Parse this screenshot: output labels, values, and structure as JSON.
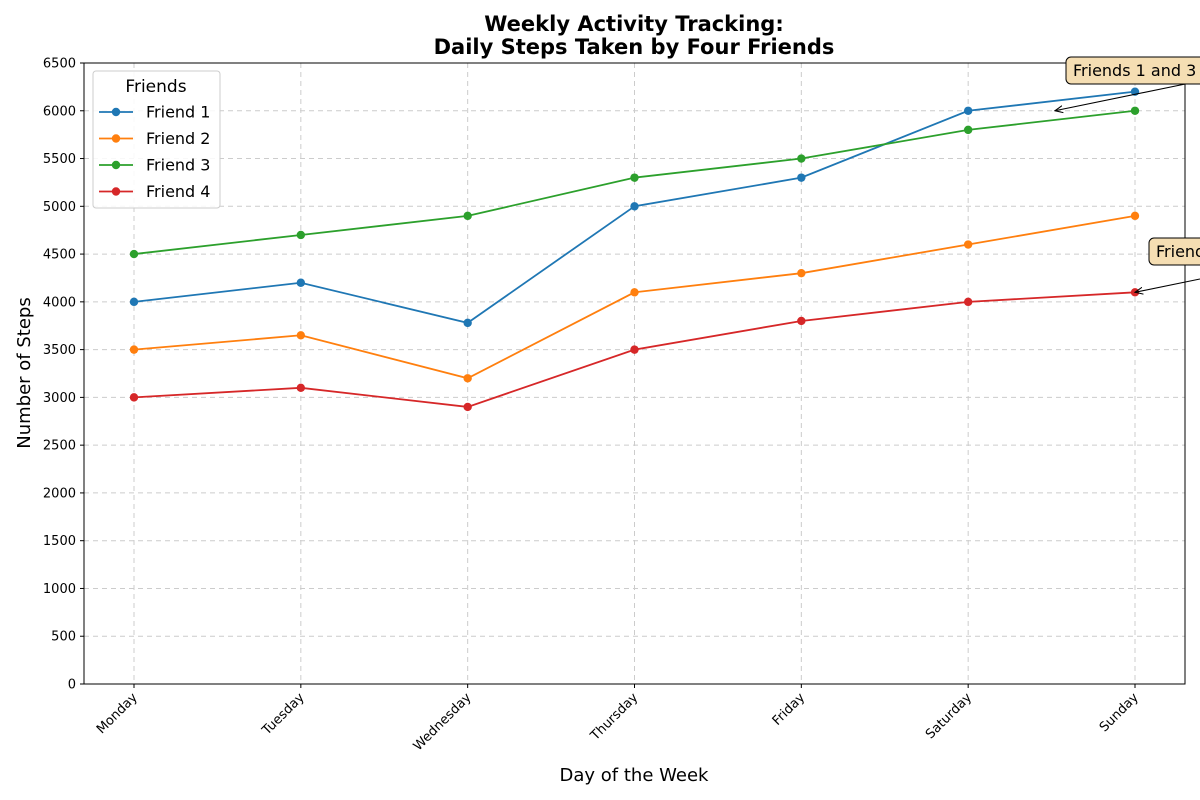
{
  "chart_data": {
    "type": "line",
    "title_line1": "Weekly Activity Tracking:",
    "title_line2": "Daily Steps Taken by Four Friends",
    "xlabel": "Day of the Week",
    "ylabel": "Number of Steps",
    "categories": [
      "Monday",
      "Tuesday",
      "Wednesday",
      "Thursday",
      "Friday",
      "Saturday",
      "Sunday"
    ],
    "ylim": [
      0,
      6500
    ],
    "yticks": [
      0,
      500,
      1000,
      1500,
      2000,
      2500,
      3000,
      3500,
      4000,
      4500,
      5000,
      5500,
      6000,
      6500
    ],
    "grid": true,
    "legend": {
      "title": "Friends",
      "placement": "top-left"
    },
    "series": [
      {
        "name": "Friend 1",
        "color": "#1f77b4",
        "values": [
          4000,
          4200,
          3780,
          5000,
          5300,
          6000,
          6200
        ]
      },
      {
        "name": "Friend 2",
        "color": "#ff7f0e",
        "values": [
          3500,
          3650,
          3200,
          4100,
          4300,
          4600,
          4900
        ]
      },
      {
        "name": "Friend 3",
        "color": "#2ca02c",
        "values": [
          4500,
          4700,
          4900,
          5300,
          5500,
          5800,
          6000
        ]
      },
      {
        "name": "Friend 4",
        "color": "#d62728",
        "values": [
          3000,
          3100,
          2900,
          3500,
          3800,
          4000,
          4100
        ]
      }
    ],
    "annotations": [
      {
        "text": "Friends 1 and 3",
        "target_x": 5.52,
        "target_y": 6000,
        "box_color": "#f5deb3"
      },
      {
        "text": "Friend",
        "target_x": 6,
        "target_y": 4100,
        "box_color": "#f5deb3"
      }
    ]
  }
}
